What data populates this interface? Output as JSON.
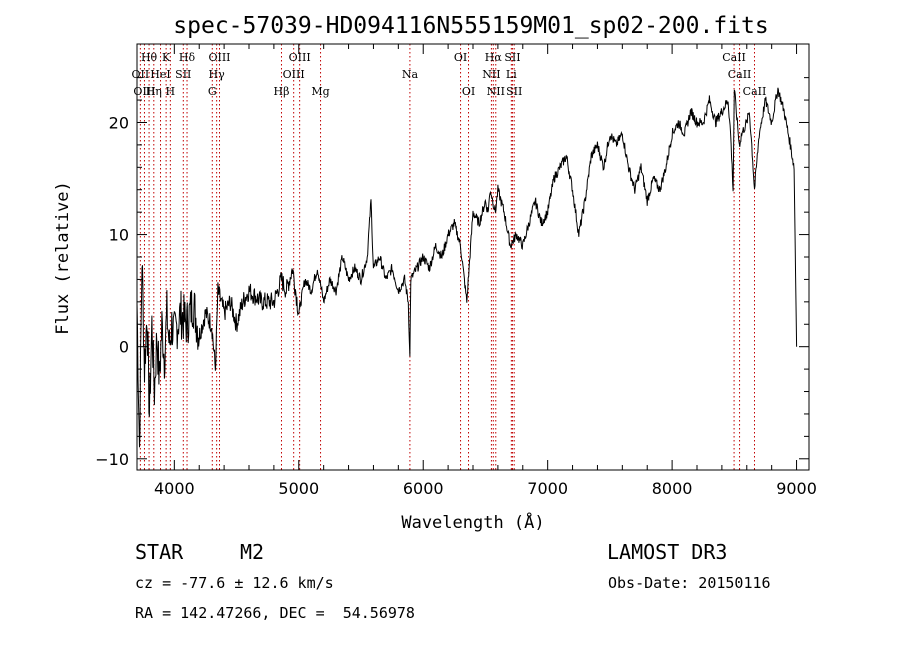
{
  "chart_data": {
    "type": "line",
    "title": "spec-57039-HD094116N555159M01_sp02-200.fits",
    "xlabel": "Wavelength (Å)",
    "ylabel": "Flux (relative)",
    "xlim": [
      3700,
      9100
    ],
    "ylim": [
      -11,
      27
    ],
    "xticks": [
      4000,
      5000,
      6000,
      7000,
      8000,
      9000
    ],
    "yticks": [
      -10,
      0,
      10,
      20
    ],
    "spectrum": {
      "x": [
        3700,
        3720,
        3740,
        3760,
        3780,
        3800,
        3820,
        3840,
        3860,
        3880,
        3900,
        3920,
        3940,
        3960,
        3980,
        4000,
        4050,
        4100,
        4150,
        4200,
        4250,
        4300,
        4330,
        4350,
        4400,
        4450,
        4500,
        4550,
        4600,
        4700,
        4800,
        4860,
        4900,
        4950,
        5000,
        5050,
        5100,
        5150,
        5200,
        5250,
        5300,
        5350,
        5400,
        5450,
        5500,
        5550,
        5580,
        5600,
        5650,
        5700,
        5750,
        5800,
        5850,
        5880,
        5893,
        5900,
        5950,
        6000,
        6050,
        6100,
        6150,
        6200,
        6250,
        6300,
        6350,
        6400,
        6450,
        6500,
        6520,
        6540,
        6560,
        6580,
        6600,
        6650,
        6700,
        6750,
        6800,
        6850,
        6900,
        6950,
        7000,
        7050,
        7100,
        7150,
        7200,
        7250,
        7300,
        7350,
        7400,
        7450,
        7500,
        7550,
        7600,
        7650,
        7700,
        7750,
        7800,
        7850,
        7900,
        7950,
        8000,
        8050,
        8100,
        8150,
        8200,
        8250,
        8300,
        8350,
        8400,
        8450,
        8470,
        8490,
        8500,
        8540,
        8560,
        8600,
        8620,
        8640,
        8662,
        8700,
        8750,
        8800,
        8850,
        8900,
        8950,
        8980,
        9000
      ],
      "y": [
        4,
        -9,
        8,
        -2,
        3,
        -6,
        2,
        -4,
        1,
        -3,
        2,
        -1,
        3,
        0,
        2,
        1,
        3,
        2,
        4,
        1,
        3,
        2,
        -2,
        5,
        3,
        4,
        2,
        4,
        5,
        4,
        4,
        6,
        5,
        7,
        3,
        6,
        5,
        7,
        4,
        6,
        5,
        8,
        6,
        7,
        6,
        8,
        13,
        7,
        8,
        6,
        7,
        5,
        6,
        4,
        -1,
        6,
        7,
        8,
        7,
        9,
        8,
        10,
        11,
        9,
        4,
        12,
        11,
        13,
        12,
        14,
        13,
        12,
        14,
        12,
        9,
        10,
        9,
        11,
        13,
        11,
        12,
        15,
        16,
        17,
        14,
        10,
        13,
        17,
        18,
        16,
        19,
        18,
        19,
        16,
        14,
        16,
        13,
        15,
        14,
        16,
        19,
        20,
        19,
        21,
        20,
        20,
        22,
        20,
        21,
        22,
        19,
        14,
        23,
        18,
        19,
        20,
        21,
        18,
        14,
        19,
        22,
        20,
        23,
        21,
        18,
        16,
        0
      ]
    },
    "lines": [
      {
        "label": "Hθ",
        "x": 3797,
        "row": 0
      },
      {
        "label": "K",
        "x": 3934,
        "row": 0
      },
      {
        "label": "Hδ",
        "x": 4102,
        "row": 0
      },
      {
        "label": "OIII",
        "x": 4363,
        "row": 0
      },
      {
        "label": "OIII",
        "x": 5007,
        "row": 0
      },
      {
        "label": "OI",
        "x": 6300,
        "row": 0
      },
      {
        "label": "Hα",
        "x": 6563,
        "row": 0
      },
      {
        "label": "SII",
        "x": 6717,
        "row": 0
      },
      {
        "label": "CaII",
        "x": 8498,
        "row": 0
      },
      {
        "label": "OII",
        "x": 3727,
        "row": 1
      },
      {
        "label": "HeI",
        "x": 3889,
        "row": 1
      },
      {
        "label": "SII",
        "x": 4072,
        "row": 1
      },
      {
        "label": "Hγ",
        "x": 4340,
        "row": 1
      },
      {
        "label": "OIII",
        "x": 4959,
        "row": 1
      },
      {
        "label": "Na",
        "x": 5893,
        "row": 1
      },
      {
        "label": "NII",
        "x": 6548,
        "row": 1
      },
      {
        "label": "Li",
        "x": 6708,
        "row": 1
      },
      {
        "label": "CaII",
        "x": 8542,
        "row": 1
      },
      {
        "label": "OIII",
        "x": 3760,
        "row": 2
      },
      {
        "label": "Hη",
        "x": 3835,
        "row": 2
      },
      {
        "label": "H",
        "x": 3968,
        "row": 2
      },
      {
        "label": "G",
        "x": 4305,
        "row": 2
      },
      {
        "label": "Hβ",
        "x": 4861,
        "row": 2
      },
      {
        "label": "Mg",
        "x": 5175,
        "row": 2
      },
      {
        "label": "OI",
        "x": 6364,
        "row": 2
      },
      {
        "label": "NII",
        "x": 6583,
        "row": 2
      },
      {
        "label": "SII",
        "x": 6731,
        "row": 2
      },
      {
        "label": "CaII",
        "x": 8662,
        "row": 2
      }
    ]
  },
  "info": {
    "class": "STAR",
    "subclass": "M2",
    "survey": "LAMOST DR3",
    "cz": "cz = -77.6 ± 12.6 km/s",
    "obs_date": "Obs-Date: 20150116",
    "coords": "RA = 142.47266, DEC =  54.56978"
  }
}
